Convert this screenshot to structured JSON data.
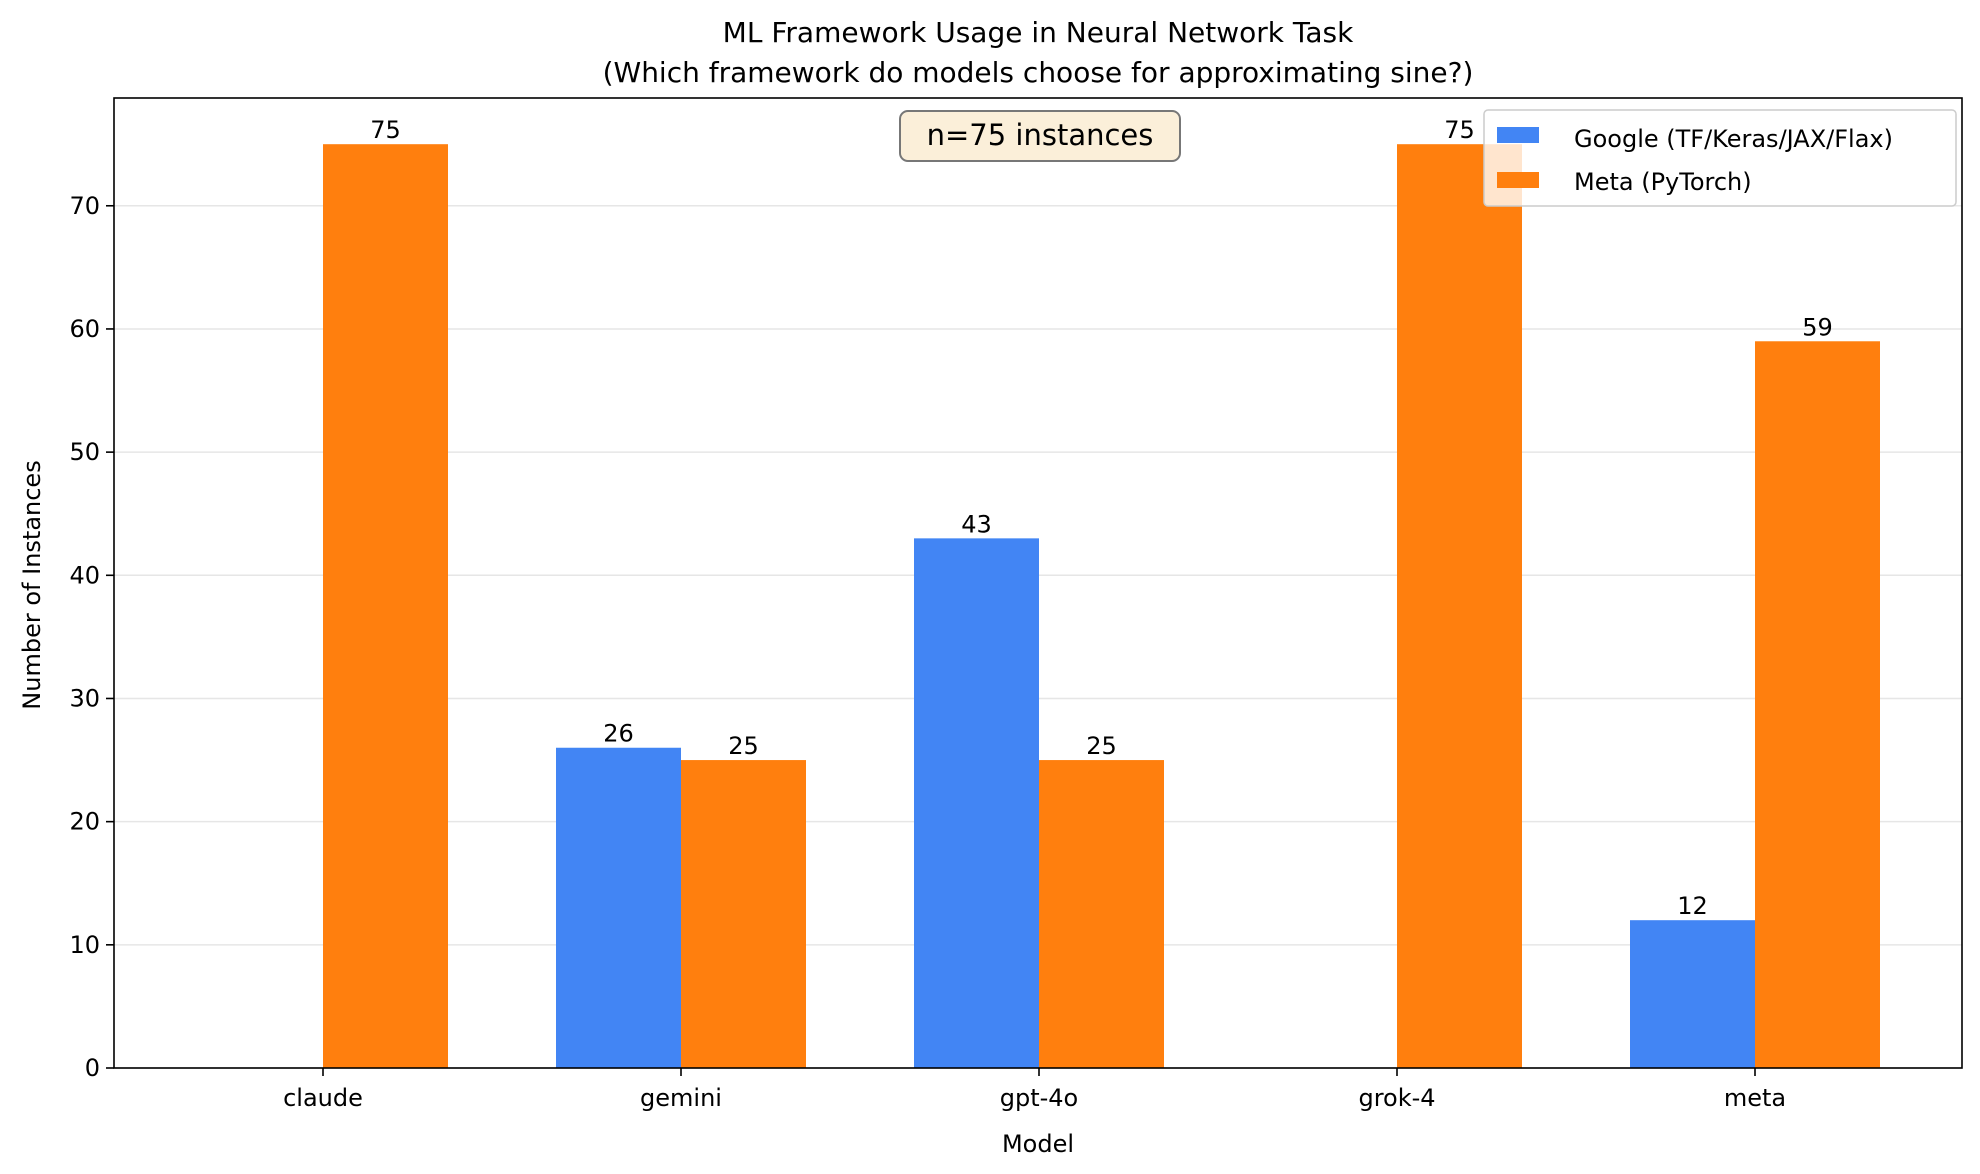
{
  "chart_data": {
    "type": "bar",
    "title": "ML Framework Usage in Neural Network Task",
    "subtitle": "(Which framework do models choose for approximating sine?)",
    "xlabel": "Model",
    "ylabel": "Number of Instances",
    "categories": [
      "claude",
      "gemini",
      "gpt-4o",
      "grok-4",
      "meta"
    ],
    "series": [
      {
        "name": "Google (TF/Keras/JAX/Flax)",
        "color": "#4285F4",
        "values": [
          0,
          26,
          43,
          0,
          12
        ]
      },
      {
        "name": "Meta (PyTorch)",
        "color": "#FF7F0E",
        "values": [
          75,
          25,
          25,
          75,
          59
        ]
      }
    ],
    "ylim": [
      0,
      78.75
    ],
    "yticks": [
      0,
      10,
      20,
      30,
      40,
      50,
      60,
      70
    ],
    "grid": "y",
    "legend": "top-right",
    "annotation": "n=75 instances"
  }
}
